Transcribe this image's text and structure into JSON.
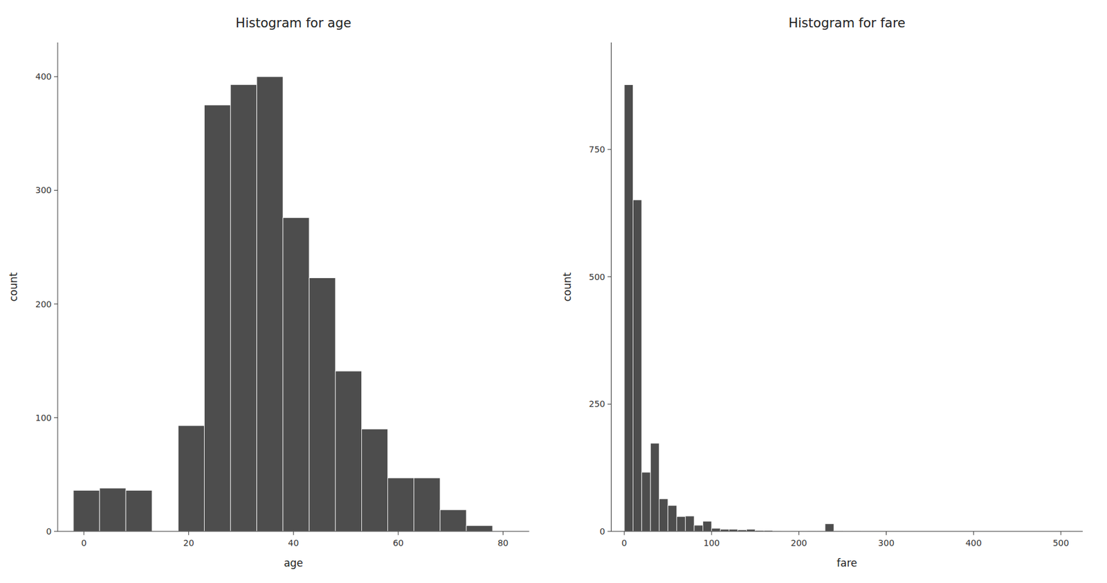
{
  "chart_data": [
    {
      "type": "histogram",
      "title": "Histogram for age",
      "x_label": "age",
      "y_label": "count",
      "x": [
        -2,
        3,
        8,
        13,
        18,
        23,
        28,
        33,
        38,
        43,
        48,
        53,
        58,
        63,
        68,
        73
      ],
      "values": [
        36,
        38,
        36,
        0,
        93,
        375,
        393,
        400,
        276,
        223,
        141,
        90,
        47,
        47,
        19,
        5
      ],
      "bin_width": 5,
      "color": "#4d4d4d",
      "xlim": [
        -5,
        85
      ],
      "ylim": [
        0,
        430
      ],
      "xticks": [
        0,
        20,
        40,
        60,
        80
      ],
      "yticks": [
        0,
        100,
        200,
        300,
        400
      ],
      "grid": false
    },
    {
      "type": "histogram",
      "title": "Histogram for fare",
      "x_label": "fare",
      "y_label": "count",
      "x": [
        0,
        10,
        20,
        30,
        40,
        50,
        60,
        70,
        80,
        90,
        100,
        110,
        120,
        130,
        140,
        150,
        160,
        170,
        180,
        190,
        200,
        210,
        220,
        230,
        240,
        250,
        260,
        500
      ],
      "values": [
        877,
        651,
        116,
        173,
        64,
        51,
        29,
        30,
        12,
        20,
        6,
        4,
        4,
        3,
        4,
        2,
        2,
        1,
        0,
        1,
        0,
        1,
        1,
        15,
        1,
        0,
        1,
        1
      ],
      "bin_width": 10,
      "color": "#4d4d4d",
      "xlim": [
        -15,
        525
      ],
      "ylim": [
        0,
        960
      ],
      "xticks": [
        0,
        100,
        200,
        300,
        400,
        500
      ],
      "yticks": [
        0,
        250,
        500,
        750
      ],
      "grid": false
    }
  ]
}
